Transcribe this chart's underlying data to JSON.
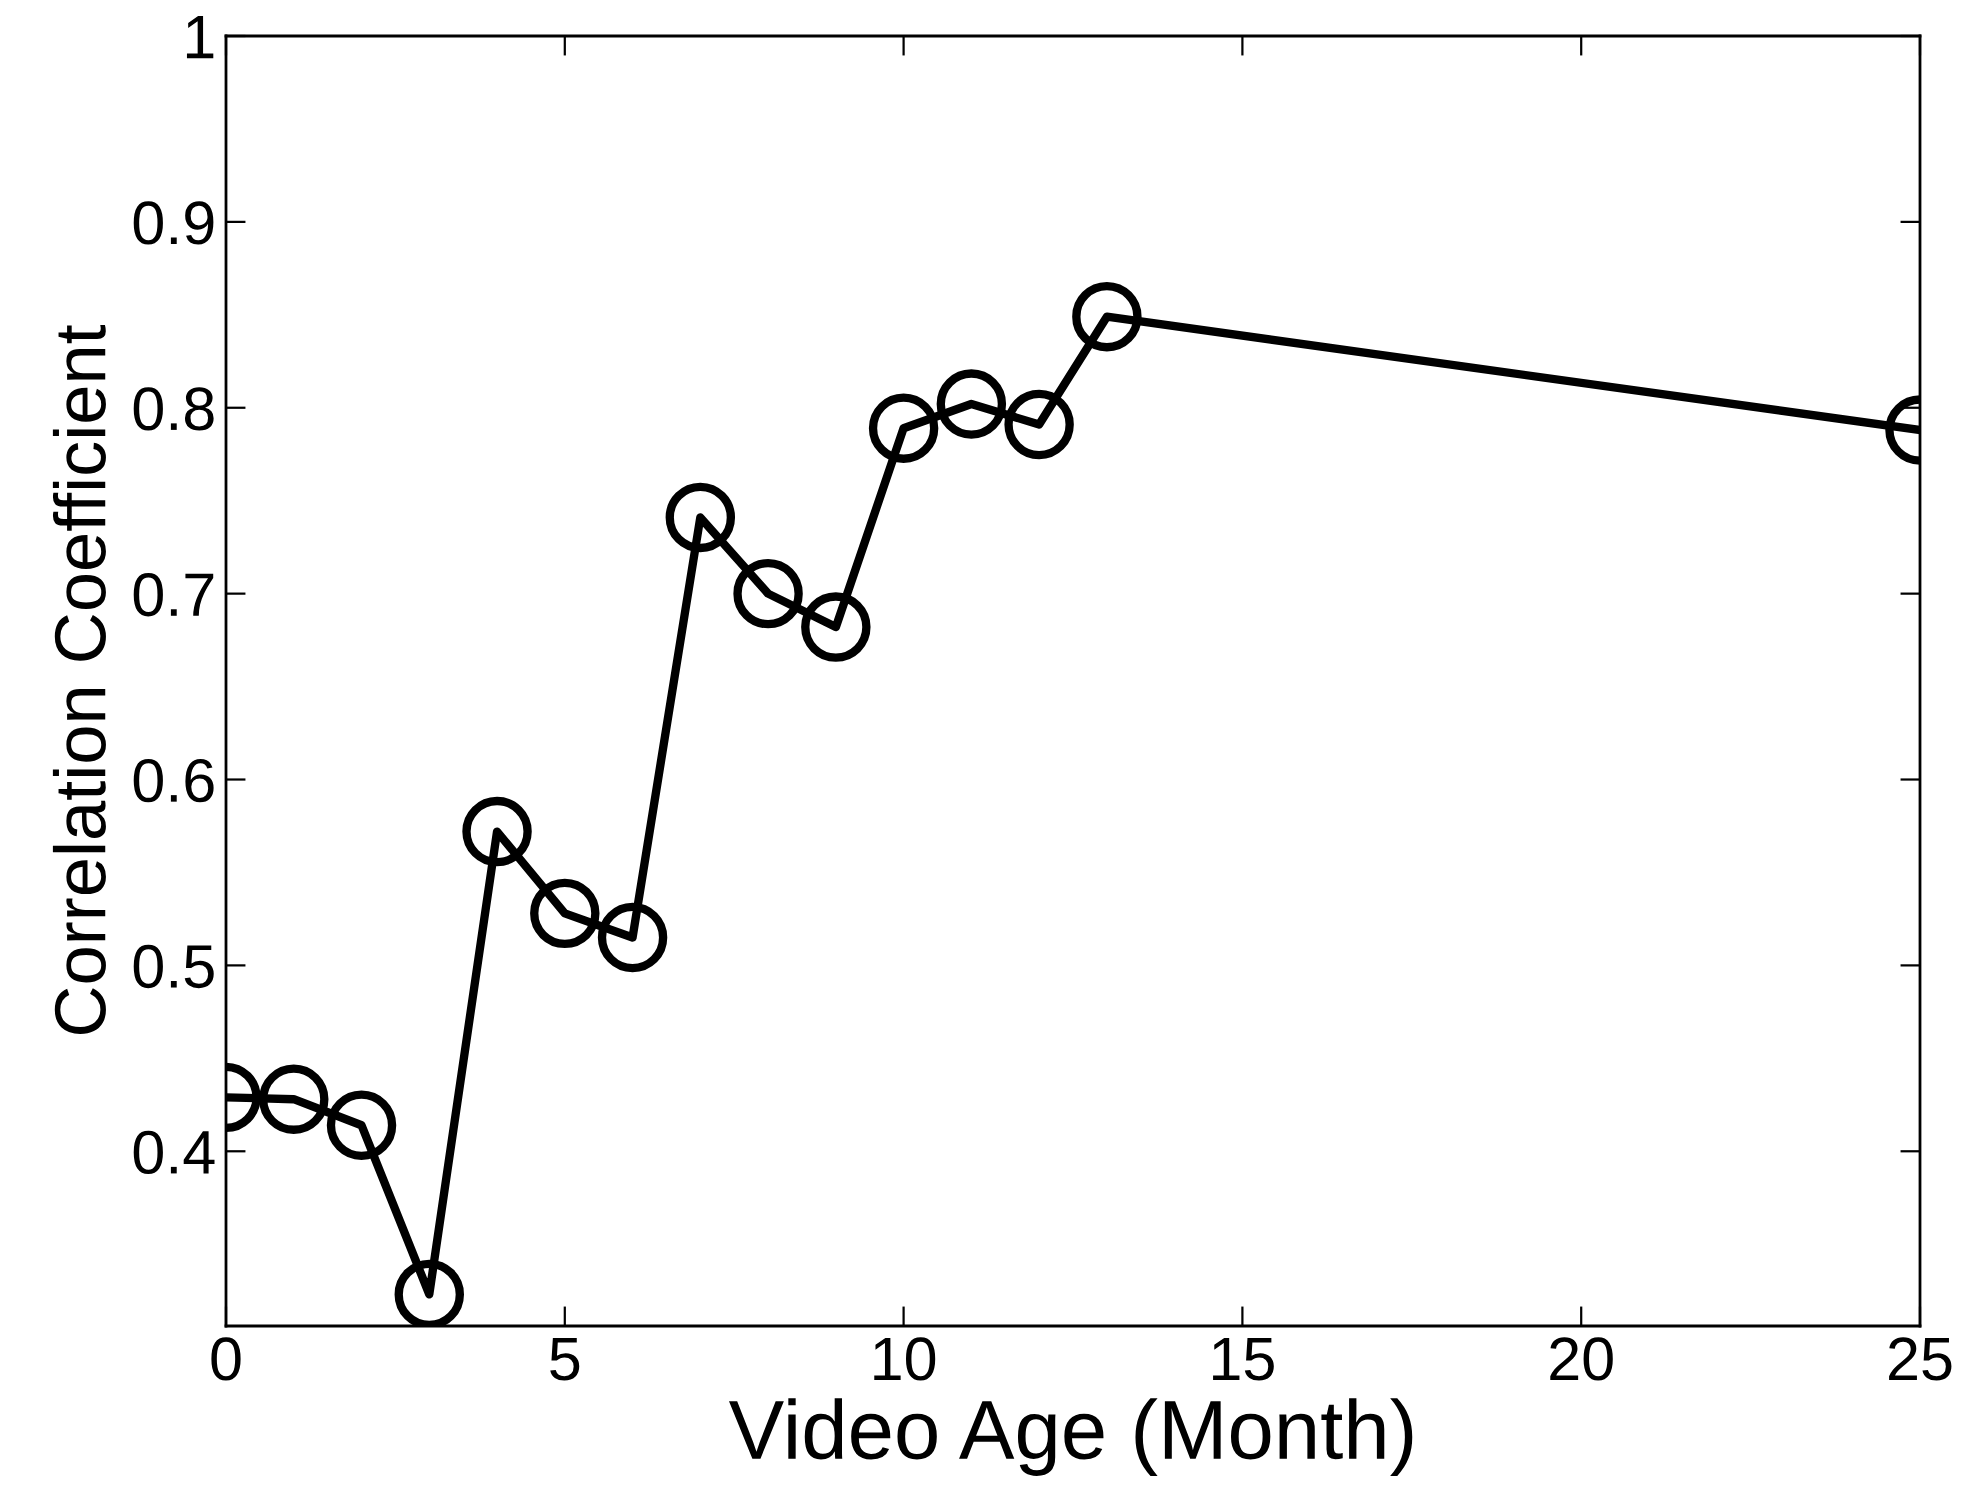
{
  "chart_data": {
    "type": "line",
    "xlabel": "Video Age (Month)",
    "ylabel": "Correlation Coefficient",
    "x": [
      0,
      1,
      2,
      3,
      4,
      5,
      6,
      7,
      8,
      9,
      10,
      11,
      12,
      13,
      25
    ],
    "series": [
      {
        "color": "#000000",
        "values": [
          0.429,
          0.428,
          0.414,
          0.323,
          0.572,
          0.528,
          0.515,
          0.741,
          0.7,
          0.682,
          0.789,
          0.802,
          0.791,
          0.849,
          0.788
        ]
      }
    ],
    "xlim": [
      0,
      25
    ],
    "ylim": [
      0.306,
      1
    ],
    "xticks": [
      0,
      5,
      10,
      15,
      20,
      25
    ],
    "yticks": [
      0.4,
      0.5,
      0.6,
      0.7,
      0.8,
      0.9,
      1
    ],
    "grid": false,
    "legend": false,
    "marker": "circle",
    "line_style": "solid"
  }
}
